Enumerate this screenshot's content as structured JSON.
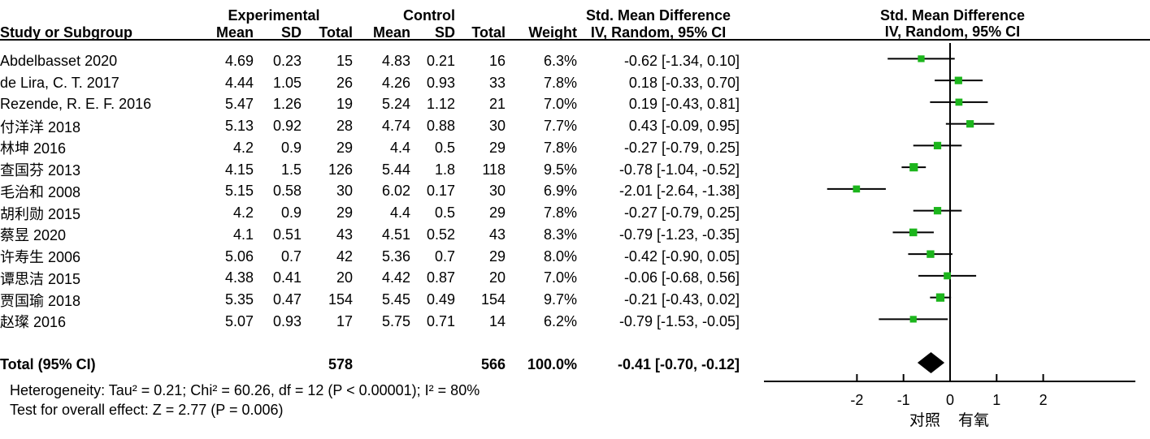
{
  "header": {
    "group_experimental": "Experimental",
    "group_control": "Control",
    "smd_text_col": "Std. Mean Difference",
    "smd_plot_col": "Std. Mean Difference",
    "study": "Study or Subgroup",
    "mean_exp": "Mean",
    "sd_exp": "SD",
    "total_exp": "Total",
    "mean_ctrl": "Mean",
    "sd_ctrl": "SD",
    "total_ctrl": "Total",
    "weight": "Weight",
    "iv_text_col": "IV, Random, 95% CI",
    "iv_plot_col": "IV, Random, 95% CI"
  },
  "table": {
    "rows": [
      {
        "study": "Abdelbasset 2020",
        "e_mean": "4.69",
        "e_sd": "0.23",
        "e_total": "15",
        "c_mean": "4.83",
        "c_sd": "0.21",
        "c_total": "16",
        "weight": "6.3%",
        "ci": "-0.62 [-1.34, 0.10]"
      },
      {
        "study": "de Lira, C. T. 2017",
        "e_mean": "4.44",
        "e_sd": "1.05",
        "e_total": "26",
        "c_mean": "4.26",
        "c_sd": "0.93",
        "c_total": "33",
        "weight": "7.8%",
        "ci": "0.18 [-0.33, 0.70]"
      },
      {
        "study": "Rezende, R. E. F. 2016",
        "e_mean": "5.47",
        "e_sd": "1.26",
        "e_total": "19",
        "c_mean": "5.24",
        "c_sd": "1.12",
        "c_total": "21",
        "weight": "7.0%",
        "ci": "0.19 [-0.43, 0.81]"
      },
      {
        "study": "付洋洋 2018",
        "e_mean": "5.13",
        "e_sd": "0.92",
        "e_total": "28",
        "c_mean": "4.74",
        "c_sd": "0.88",
        "c_total": "30",
        "weight": "7.7%",
        "ci": "0.43 [-0.09, 0.95]"
      },
      {
        "study": "林坤 2016",
        "e_mean": "4.2",
        "e_sd": "0.9",
        "e_total": "29",
        "c_mean": "4.4",
        "c_sd": "0.5",
        "c_total": "29",
        "weight": "7.8%",
        "ci": "-0.27 [-0.79, 0.25]"
      },
      {
        "study": "查国芬 2013",
        "e_mean": "4.15",
        "e_sd": "1.5",
        "e_total": "126",
        "c_mean": "5.44",
        "c_sd": "1.8",
        "c_total": "118",
        "weight": "9.5%",
        "ci": "-0.78 [-1.04, -0.52]"
      },
      {
        "study": "毛治和 2008",
        "e_mean": "5.15",
        "e_sd": "0.58",
        "e_total": "30",
        "c_mean": "6.02",
        "c_sd": "0.17",
        "c_total": "30",
        "weight": "6.9%",
        "ci": "-2.01 [-2.64, -1.38]"
      },
      {
        "study": "胡利勋 2015",
        "e_mean": "4.2",
        "e_sd": "0.9",
        "e_total": "29",
        "c_mean": "4.4",
        "c_sd": "0.5",
        "c_total": "29",
        "weight": "7.8%",
        "ci": "-0.27 [-0.79, 0.25]"
      },
      {
        "study": "蔡昱 2020",
        "e_mean": "4.1",
        "e_sd": "0.51",
        "e_total": "43",
        "c_mean": "4.51",
        "c_sd": "0.52",
        "c_total": "43",
        "weight": "8.3%",
        "ci": "-0.79 [-1.23, -0.35]"
      },
      {
        "study": "许寿生 2006",
        "e_mean": "5.06",
        "e_sd": "0.7",
        "e_total": "42",
        "c_mean": "5.36",
        "c_sd": "0.7",
        "c_total": "29",
        "weight": "8.0%",
        "ci": "-0.42 [-0.90, 0.05]"
      },
      {
        "study": "谭思洁 2015",
        "e_mean": "4.38",
        "e_sd": "0.41",
        "e_total": "20",
        "c_mean": "4.42",
        "c_sd": "0.87",
        "c_total": "20",
        "weight": "7.0%",
        "ci": "-0.06 [-0.68, 0.56]"
      },
      {
        "study": "贾国瑜 2018",
        "e_mean": "5.35",
        "e_sd": "0.47",
        "e_total": "154",
        "c_mean": "5.45",
        "c_sd": "0.49",
        "c_total": "154",
        "weight": "9.7%",
        "ci": "-0.21 [-0.43, 0.02]"
      },
      {
        "study": "赵璨 2016",
        "e_mean": "5.07",
        "e_sd": "0.93",
        "e_total": "17",
        "c_mean": "5.75",
        "c_sd": "0.71",
        "c_total": "14",
        "weight": "6.2%",
        "ci": "-0.79 [-1.53, -0.05]"
      }
    ],
    "total_row": {
      "label": "Total (95% CI)",
      "e_total": "578",
      "c_total": "566",
      "weight": "100.0%",
      "ci": "-0.41 [-0.70, -0.12]"
    }
  },
  "footer": {
    "heterogeneity": "Heterogeneity: Tau² = 0.21; Chi² = 60.26, df = 12 (P < 0.00001); I² = 80%",
    "overall_effect": "Test for overall effect: Z = 2.77 (P = 0.006)"
  },
  "chart_data": {
    "type": "scatter",
    "subtype": "forest-plot",
    "effect_measure": "Std. Mean Difference, IV, Random, 95% CI",
    "xlim": [
      -4,
      4
    ],
    "x_ticks": [
      -2,
      -1,
      0,
      1,
      2
    ],
    "axis_label_left": "对照",
    "axis_label_right": "有氧",
    "marker_color": "#1cb51c",
    "line_color": "#000000",
    "studies": [
      {
        "name": "Abdelbasset 2020",
        "est": -0.62,
        "lo": -1.34,
        "hi": 0.1,
        "weight_pct": 6.3
      },
      {
        "name": "de Lira, C. T. 2017",
        "est": 0.18,
        "lo": -0.33,
        "hi": 0.7,
        "weight_pct": 7.8
      },
      {
        "name": "Rezende, R. E. F. 2016",
        "est": 0.19,
        "lo": -0.43,
        "hi": 0.81,
        "weight_pct": 7.0
      },
      {
        "name": "付洋洋 2018",
        "est": 0.43,
        "lo": -0.09,
        "hi": 0.95,
        "weight_pct": 7.7
      },
      {
        "name": "林坤 2016",
        "est": -0.27,
        "lo": -0.79,
        "hi": 0.25,
        "weight_pct": 7.8
      },
      {
        "name": "查国芬 2013",
        "est": -0.78,
        "lo": -1.04,
        "hi": -0.52,
        "weight_pct": 9.5
      },
      {
        "name": "毛治和 2008",
        "est": -2.01,
        "lo": -2.64,
        "hi": -1.38,
        "weight_pct": 6.9
      },
      {
        "name": "胡利勋 2015",
        "est": -0.27,
        "lo": -0.79,
        "hi": 0.25,
        "weight_pct": 7.8
      },
      {
        "name": "蔡昱 2020",
        "est": -0.79,
        "lo": -1.23,
        "hi": -0.35,
        "weight_pct": 8.3
      },
      {
        "name": "许寿生 2006",
        "est": -0.42,
        "lo": -0.9,
        "hi": 0.05,
        "weight_pct": 8.0
      },
      {
        "name": "谭思洁 2015",
        "est": -0.06,
        "lo": -0.68,
        "hi": 0.56,
        "weight_pct": 7.0
      },
      {
        "name": "贾国瑜 2018",
        "est": -0.21,
        "lo": -0.43,
        "hi": 0.02,
        "weight_pct": 9.7
      },
      {
        "name": "赵璨 2016",
        "est": -0.79,
        "lo": -1.53,
        "hi": -0.05,
        "weight_pct": 6.2
      }
    ],
    "total": {
      "name": "Total (95% CI)",
      "est": -0.41,
      "lo": -0.7,
      "hi": -0.12,
      "weight_pct": 100.0
    }
  }
}
